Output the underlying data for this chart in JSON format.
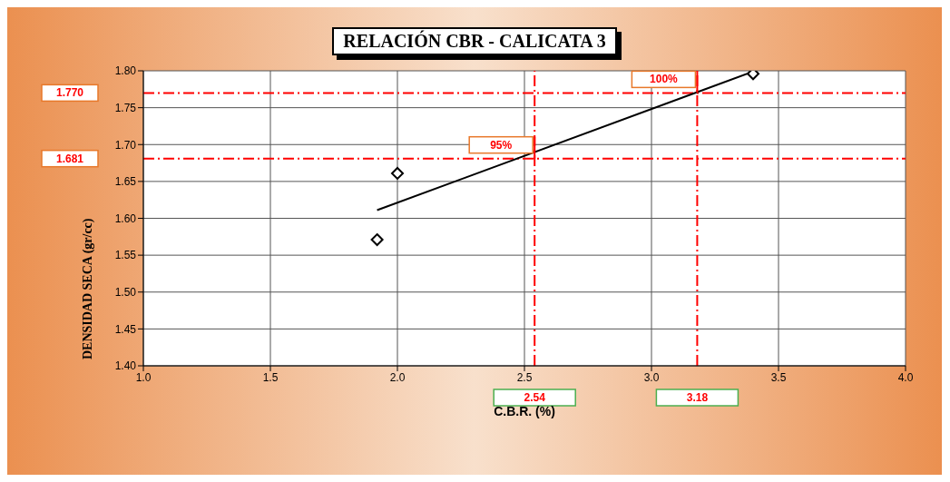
{
  "chart_data": {
    "type": "scatter",
    "title": "RELACIÓN CBR - CALICATA 3",
    "xlabel": "C.B.R. (%)",
    "ylabel": "DENSIDAD SECA (gr/cc)",
    "series": [
      {
        "type": "scatter",
        "x": [
          1.92,
          2.0,
          3.4
        ],
        "values": [
          1.571,
          1.661,
          1.796
        ],
        "color": "#000000",
        "marker": "diamond"
      },
      {
        "type": "line",
        "x": [
          1.92,
          3.4
        ],
        "values": [
          1.611,
          1.799
        ],
        "color": "#000000",
        "marker": "none",
        "line_style": "solid"
      }
    ],
    "xlim": [
      1,
      4
    ],
    "xticks": [
      {
        "value": 1,
        "label": "1.0"
      },
      {
        "value": 1.5,
        "label": "1.5"
      },
      {
        "value": 2,
        "label": "2.0"
      },
      {
        "value": 2.5,
        "label": "2.5"
      },
      {
        "value": 3,
        "label": "3.0"
      },
      {
        "value": 3.5,
        "label": "3.5"
      },
      {
        "value": 4,
        "label": "4.0"
      }
    ],
    "ylim": [
      1.4,
      1.8
    ],
    "yticks": [
      {
        "value": 1.4,
        "label": "1.40"
      },
      {
        "value": 1.45,
        "label": "1.45"
      },
      {
        "value": 1.5,
        "label": "1.50"
      },
      {
        "value": 1.55,
        "label": "1.55"
      },
      {
        "value": 1.6,
        "label": "1.60"
      },
      {
        "value": 1.65,
        "label": "1.65"
      },
      {
        "value": 1.7,
        "label": "1.70"
      },
      {
        "value": 1.75,
        "label": "1.75"
      },
      {
        "value": 1.8,
        "label": "1.80"
      }
    ],
    "ref_lines": [
      {
        "axis": "y",
        "value": 1.77,
        "label": "1.770",
        "color": "#ff0000",
        "line_style": "dashed"
      },
      {
        "axis": "y",
        "value": 1.681,
        "label": "1.681",
        "color": "#ff0000",
        "line_style": "dashed"
      },
      {
        "axis": "x",
        "value": 2.54,
        "label": "2.54",
        "color": "#ff0000",
        "line_style": "dashed"
      },
      {
        "axis": "x",
        "value": 3.18,
        "label": "3.18",
        "color": "#ff0000",
        "line_style": "dashed"
      }
    ],
    "annotations": [
      {
        "text": "95%",
        "x": 2.54,
        "y": 1.681
      },
      {
        "text": "100%",
        "x": 3.18,
        "y": 1.77
      }
    ],
    "grid": true,
    "legend": false
  }
}
